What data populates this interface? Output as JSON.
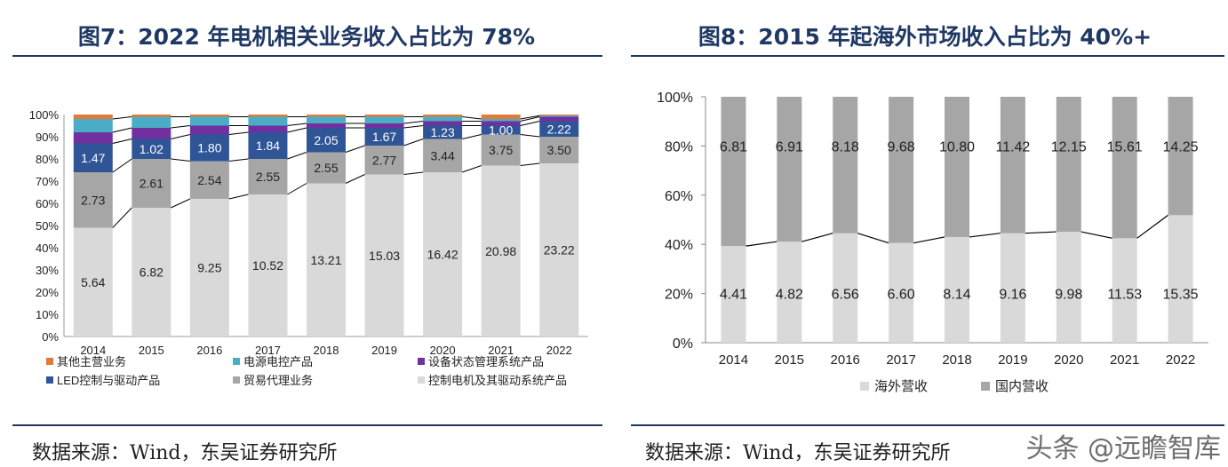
{
  "left": {
    "title": "图7：2022 年电机相关业务收入占比为 78%",
    "source": "数据来源：Wind，东吴证券研究所"
  },
  "right": {
    "title": "图8：2015 年起海外市场收入占比为 40%+",
    "source": "数据来源：Wind，东吴证券研究所"
  },
  "watermark": "头条 @远瞻智库",
  "colors": {
    "title": "#1f3864",
    "motor": "#d9d9d9",
    "trade": "#a6a6a6",
    "led": "#2f5597",
    "monitor": "#7030a0",
    "power": "#4bacc6",
    "other": "#e07b39",
    "overseas": "#d9d9d9",
    "domestic": "#a6a6a6"
  },
  "chart_data": [
    {
      "type": "bar",
      "stacked": "percent",
      "categories": [
        "2014",
        "2015",
        "2016",
        "2017",
        "2018",
        "2019",
        "2020",
        "2021",
        "2022"
      ],
      "ylim": [
        0,
        100
      ],
      "yticks": [
        "0%",
        "10%",
        "20%",
        "30%",
        "40%",
        "50%",
        "60%",
        "70%",
        "80%",
        "90%",
        "100%"
      ],
      "series": [
        {
          "name": "控制电机及其驱动系统产品",
          "color_key": "motor",
          "labeled": true,
          "shares": [
            0.49,
            0.58,
            0.62,
            0.64,
            0.69,
            0.73,
            0.74,
            0.77,
            0.78
          ],
          "values": [
            5.64,
            6.82,
            9.25,
            10.52,
            13.21,
            15.03,
            16.42,
            20.98,
            23.22
          ]
        },
        {
          "name": "贸易代理业务",
          "color_key": "trade",
          "labeled": true,
          "shares": [
            0.25,
            0.22,
            0.17,
            0.16,
            0.14,
            0.13,
            0.15,
            0.14,
            0.12
          ],
          "values": [
            2.73,
            2.61,
            2.54,
            2.55,
            2.55,
            2.77,
            3.44,
            3.75,
            3.5
          ]
        },
        {
          "name": "LED控制与驱动产品",
          "color_key": "led",
          "labeled": true,
          "shares": [
            0.13,
            0.09,
            0.12,
            0.12,
            0.11,
            0.08,
            0.06,
            0.04,
            0.07
          ],
          "values": [
            1.47,
            1.02,
            1.8,
            1.84,
            2.05,
            1.67,
            1.23,
            1.0,
            2.22
          ]
        },
        {
          "name": "设备状态管理系统产品",
          "color_key": "monitor",
          "labeled": false,
          "shares": [
            0.05,
            0.05,
            0.04,
            0.03,
            0.02,
            0.02,
            0.02,
            0.02,
            0.02
          ]
        },
        {
          "name": "电源电控产品",
          "color_key": "power",
          "labeled": false,
          "shares": [
            0.06,
            0.05,
            0.04,
            0.04,
            0.03,
            0.03,
            0.02,
            0.01,
            0.005
          ]
        },
        {
          "name": "其他主营业务",
          "color_key": "other",
          "labeled": false,
          "shares": [
            0.02,
            0.01,
            0.01,
            0.01,
            0.01,
            0.01,
            0.01,
            0.02,
            0.005
          ]
        }
      ],
      "legend": [
        "其他主营业务",
        "电源电控产品",
        "设备状态管理系统产品",
        "LED控制与驱动产品",
        "贸易代理业务",
        "控制电机及其驱动系统产品"
      ],
      "legend_position": "bottom",
      "connector_lines": true
    },
    {
      "type": "bar",
      "stacked": "percent",
      "categories": [
        "2014",
        "2015",
        "2016",
        "2017",
        "2018",
        "2019",
        "2020",
        "2021",
        "2022"
      ],
      "ylim": [
        0,
        100
      ],
      "yticks": [
        "0%",
        "20%",
        "40%",
        "60%",
        "80%",
        "100%"
      ],
      "series": [
        {
          "name": "海外营收",
          "color_key": "overseas",
          "values": [
            4.41,
            4.82,
            6.56,
            6.6,
            8.14,
            9.16,
            9.98,
            11.53,
            15.35
          ]
        },
        {
          "name": "国内营收",
          "color_key": "domestic",
          "values": [
            6.81,
            6.91,
            8.18,
            9.68,
            10.8,
            11.42,
            12.15,
            15.61,
            14.25
          ]
        }
      ],
      "legend": [
        "海外营收",
        "国内营收"
      ],
      "legend_position": "bottom",
      "connector_lines": true
    }
  ]
}
